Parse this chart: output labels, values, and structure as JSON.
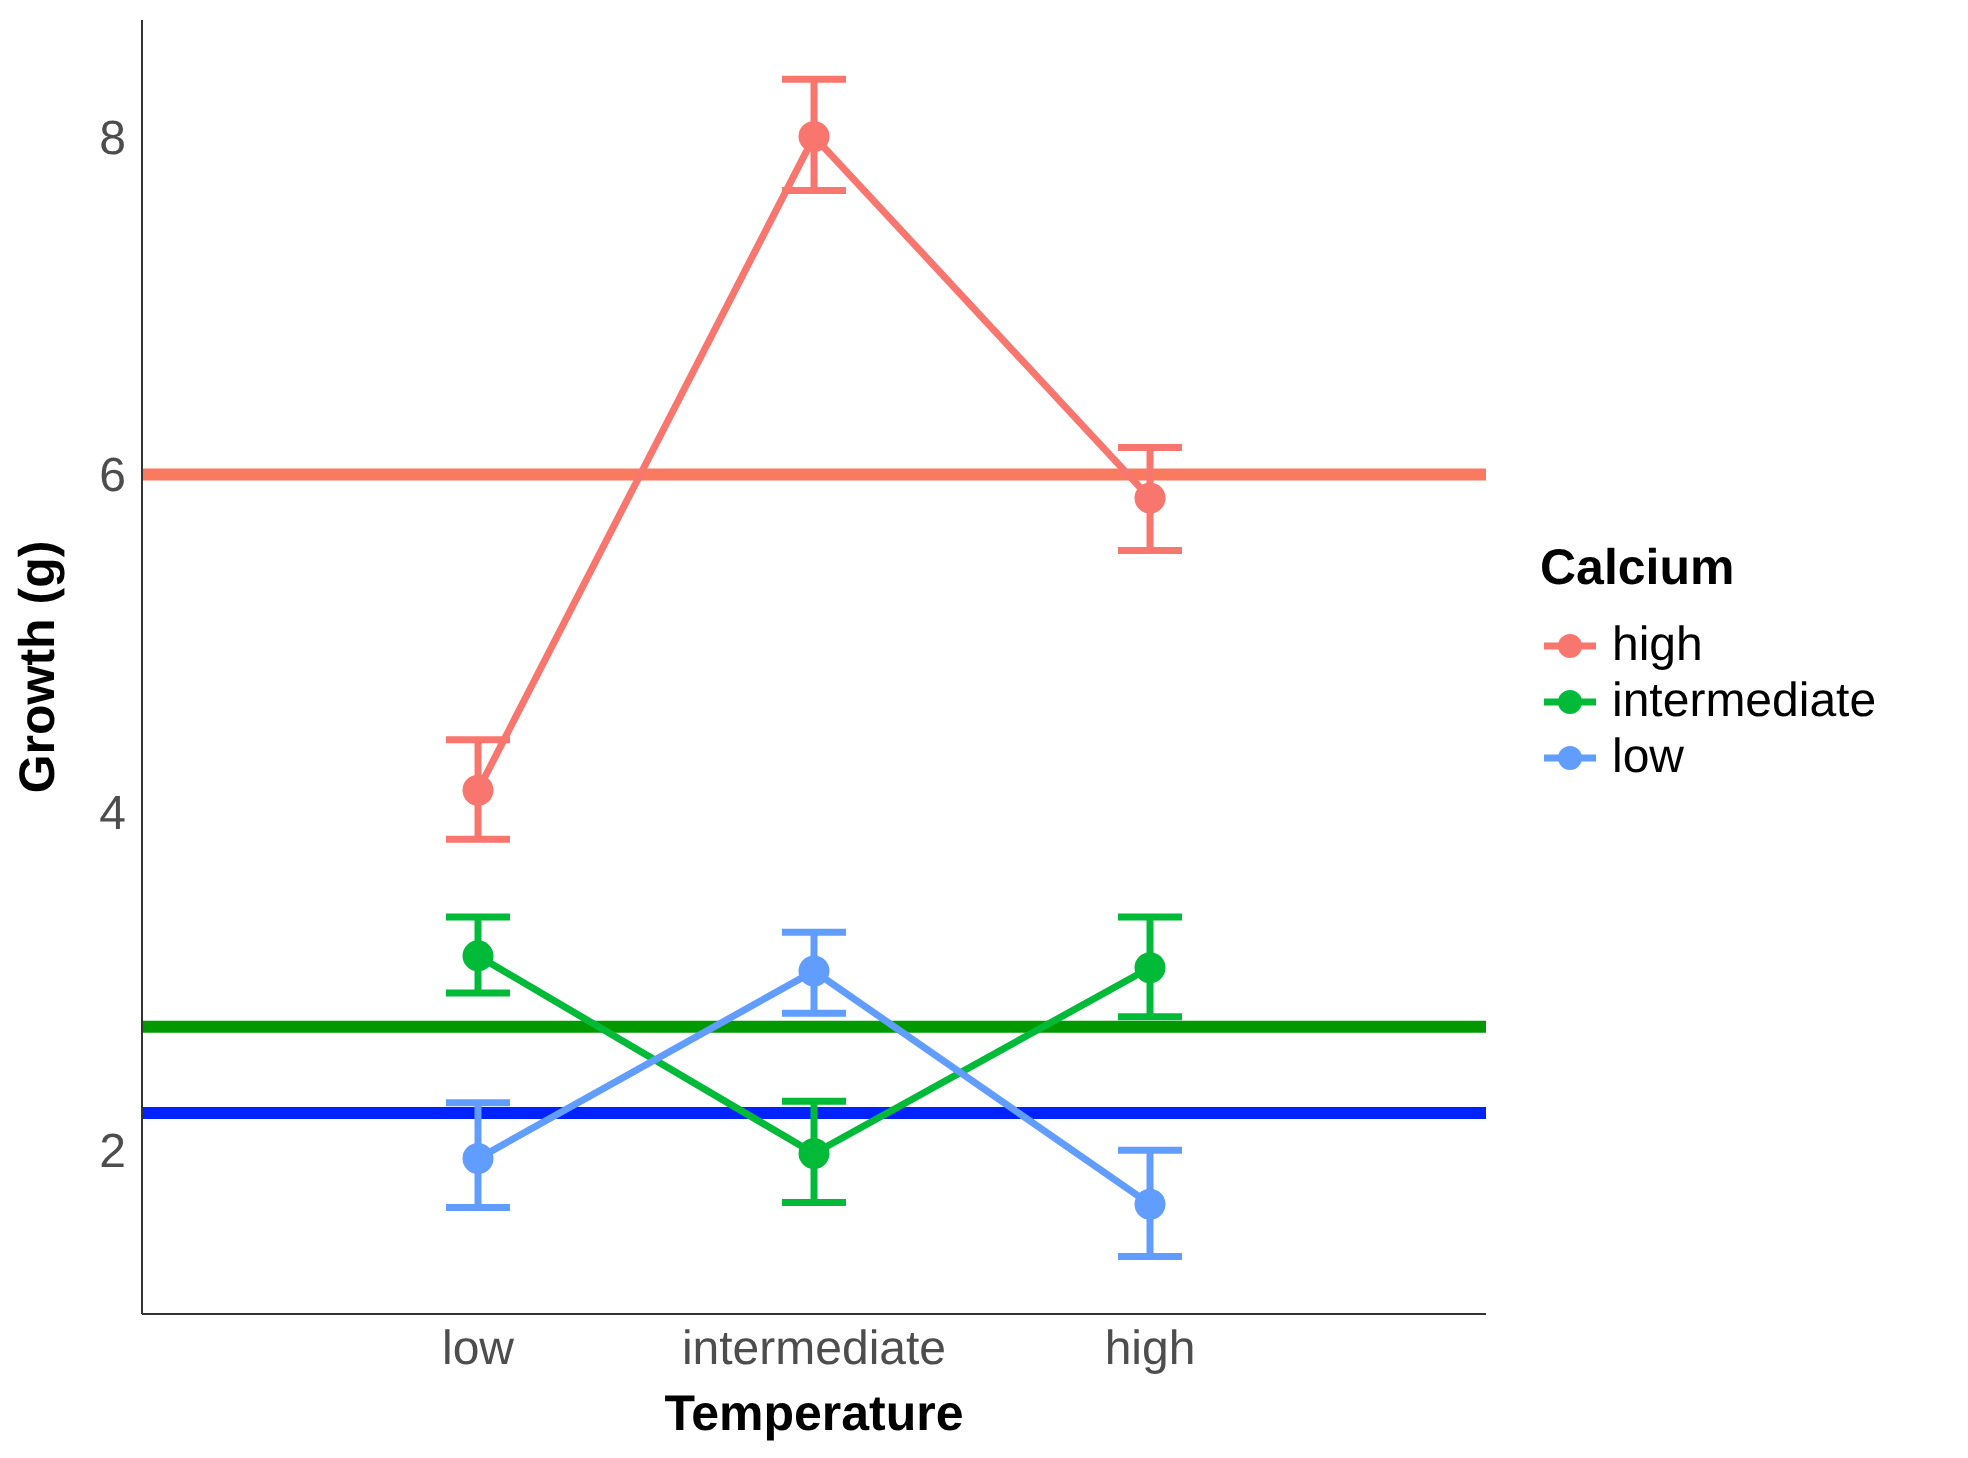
{
  "chart_data": {
    "type": "line",
    "xlabel": "Temperature",
    "ylabel": "Growth (g)",
    "legend_title": "Calcium",
    "categories": [
      "low",
      "intermediate",
      "high"
    ],
    "series": [
      {
        "name": "high",
        "color": "#f8766d",
        "values": [
          4.13,
          8.0,
          5.86
        ],
        "errors": [
          [
            3.84,
            4.43
          ],
          [
            7.68,
            8.34
          ],
          [
            5.55,
            6.16
          ]
        ]
      },
      {
        "name": "intermediate",
        "color": "#00ba38",
        "values": [
          3.15,
          1.98,
          3.08
        ],
        "errors": [
          [
            2.93,
            3.38
          ],
          [
            1.69,
            2.29
          ],
          [
            2.79,
            3.38
          ]
        ]
      },
      {
        "name": "low",
        "color": "#619cff",
        "values": [
          1.95,
          3.06,
          1.68
        ],
        "errors": [
          [
            1.66,
            2.28
          ],
          [
            2.81,
            3.29
          ],
          [
            1.37,
            2.0
          ]
        ]
      }
    ],
    "ylim": [
      1.03,
      8.69
    ],
    "yticks": [
      2,
      4,
      6,
      8
    ],
    "grid": false,
    "legend": "right",
    "marker": "circle",
    "line_style": "solid",
    "ref_lines": [
      {
        "axis": "y",
        "value": 6.0,
        "color": "#fa7a5f"
      },
      {
        "axis": "y",
        "value": 2.73,
        "color": "#009900"
      },
      {
        "axis": "y",
        "value": 2.22,
        "color": "#0022ff"
      }
    ]
  }
}
